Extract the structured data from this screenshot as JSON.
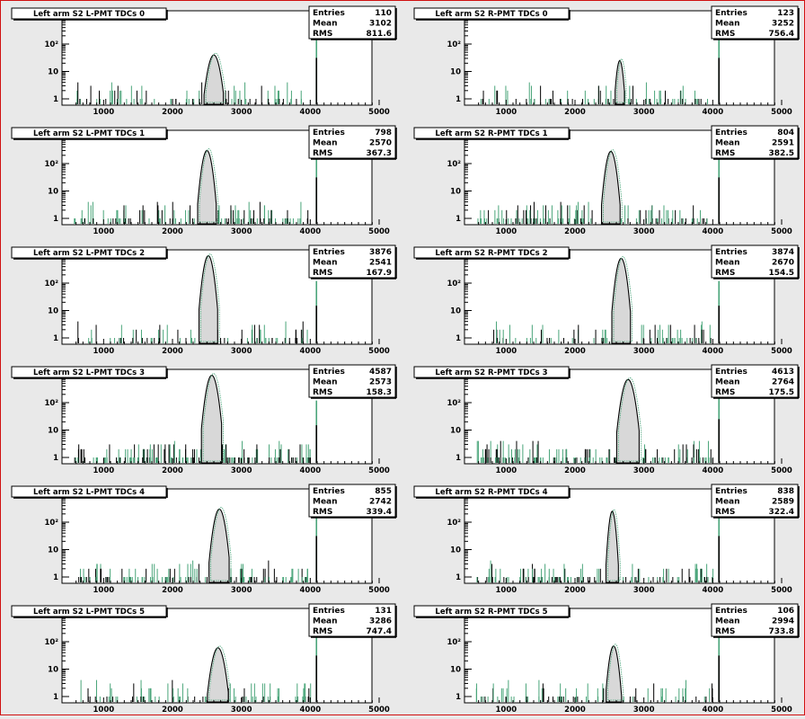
{
  "colors": {
    "background": "#e9e9e9",
    "plot_background": "#ffffff",
    "border": "#d01010",
    "green_series": "#4aa57a",
    "black_series": "#000000",
    "peak_fill": "#d8d8d8"
  },
  "chart_data": [
    {
      "type": "bar",
      "title": "Left arm S2 L-PMT TDCs 0",
      "stats": {
        "entries_label": "Entries",
        "entries": "110",
        "mean_label": "Mean",
        "mean": "3102",
        "rms_label": "RMS",
        "rms": "811.6"
      },
      "xticks": [
        "1000",
        "2000",
        "3000",
        "4000",
        "5000"
      ],
      "yticks": [
        "1",
        "10",
        "10²"
      ],
      "xlim": [
        500,
        5000
      ],
      "ylog": true,
      "peak": {
        "x": 2600,
        "height": 40,
        "width": 55
      },
      "spike_4090": 250,
      "noise": "sparse",
      "series": [
        {
          "color": "green"
        },
        {
          "color": "black"
        }
      ]
    },
    {
      "type": "bar",
      "title": "Left arm S2 R-PMT TDCs 0",
      "stats": {
        "entries_label": "Entries",
        "entries": "123",
        "mean_label": "Mean",
        "mean": "3252",
        "rms_label": "RMS",
        "rms": "756.4"
      },
      "xticks": [
        "1000",
        "2000",
        "3000",
        "4000",
        "5000"
      ],
      "yticks": [
        "1",
        "10",
        "10²"
      ],
      "xlim": [
        500,
        5000
      ],
      "ylog": true,
      "peak": {
        "x": 2650,
        "height": 25,
        "width": 30
      },
      "spike_4090": 250,
      "noise": "sparse",
      "series": [
        {
          "color": "green"
        },
        {
          "color": "black"
        }
      ]
    },
    {
      "type": "bar",
      "title": "Left arm S2 L-PMT TDCs 1",
      "stats": {
        "entries_label": "Entries",
        "entries": "798",
        "mean_label": "Mean",
        "mean": "2570",
        "rms_label": "RMS",
        "rms": "367.3"
      },
      "xticks": [
        "1000",
        "2000",
        "3000",
        "4000",
        "5000"
      ],
      "yticks": [
        "1",
        "10",
        "10²"
      ],
      "xlim": [
        500,
        5000
      ],
      "ylog": true,
      "peak": {
        "x": 2500,
        "height": 300,
        "width": 45
      },
      "spike_4090": 250,
      "noise": "medium",
      "series": [
        {
          "color": "green"
        },
        {
          "color": "black"
        }
      ]
    },
    {
      "type": "bar",
      "title": "Left arm S2 R-PMT TDCs 1",
      "stats": {
        "entries_label": "Entries",
        "entries": "804",
        "mean_label": "Mean",
        "mean": "2591",
        "rms_label": "RMS",
        "rms": "382.5"
      },
      "xticks": [
        "1000",
        "2000",
        "3000",
        "4000",
        "5000"
      ],
      "yticks": [
        "1",
        "10",
        "10²"
      ],
      "xlim": [
        500,
        5000
      ],
      "ylog": true,
      "peak": {
        "x": 2520,
        "height": 280,
        "width": 45
      },
      "spike_4090": 250,
      "noise": "medium",
      "series": [
        {
          "color": "green"
        },
        {
          "color": "black"
        }
      ]
    },
    {
      "type": "bar",
      "title": "Left arm S2 L-PMT TDCs 2",
      "stats": {
        "entries_label": "Entries",
        "entries": "3876",
        "mean_label": "Mean",
        "mean": "2541",
        "rms_label": "RMS",
        "rms": "167.9"
      },
      "xticks": [
        "1000",
        "2000",
        "3000",
        "4000",
        "5000"
      ],
      "yticks": [
        "1",
        "10",
        "10²"
      ],
      "xlim": [
        500,
        5000
      ],
      "ylog": true,
      "peak": {
        "x": 2520,
        "height": 1000,
        "width": 45
      },
      "spike_4090": 120,
      "noise": "sparse",
      "series": [
        {
          "color": "green"
        },
        {
          "color": "black"
        }
      ]
    },
    {
      "type": "bar",
      "title": "Left arm S2 R-PMT TDCs 2",
      "stats": {
        "entries_label": "Entries",
        "entries": "3874",
        "mean_label": "Mean",
        "mean": "2670",
        "rms_label": "RMS",
        "rms": "154.5"
      },
      "xticks": [
        "1000",
        "2000",
        "3000",
        "4000",
        "5000"
      ],
      "yticks": [
        "1",
        "10",
        "10²"
      ],
      "xlim": [
        500,
        5000
      ],
      "ylog": true,
      "peak": {
        "x": 2670,
        "height": 800,
        "width": 45
      },
      "spike_4090": 120,
      "noise": "sparse",
      "series": [
        {
          "color": "green"
        },
        {
          "color": "black"
        }
      ]
    },
    {
      "type": "bar",
      "title": "Left arm S2 L-PMT TDCs 3",
      "stats": {
        "entries_label": "Entries",
        "entries": "4587",
        "mean_label": "Mean",
        "mean": "2573",
        "rms_label": "RMS",
        "rms": "158.3"
      },
      "xticks": [
        "1000",
        "2000",
        "3000",
        "4000",
        "5000"
      ],
      "yticks": [
        "1",
        "10",
        "10²"
      ],
      "xlim": [
        500,
        5000
      ],
      "ylog": true,
      "peak": {
        "x": 2570,
        "height": 1000,
        "width": 50
      },
      "spike_4090": 120,
      "noise": "dense",
      "series": [
        {
          "color": "green"
        },
        {
          "color": "black"
        }
      ]
    },
    {
      "type": "bar",
      "title": "Left arm S2 R-PMT TDCs 3",
      "stats": {
        "entries_label": "Entries",
        "entries": "4613",
        "mean_label": "Mean",
        "mean": "2764",
        "rms_label": "RMS",
        "rms": "175.5"
      },
      "xticks": [
        "1000",
        "2000",
        "3000",
        "4000",
        "5000"
      ],
      "yticks": [
        "1",
        "10",
        "10²"
      ],
      "xlim": [
        500,
        5000
      ],
      "ylog": true,
      "peak": {
        "x": 2770,
        "height": 700,
        "width": 55
      },
      "spike_4090": 200,
      "noise": "dense",
      "series": [
        {
          "color": "green"
        },
        {
          "color": "black"
        }
      ]
    },
    {
      "type": "bar",
      "title": "Left arm S2 L-PMT TDCs 4",
      "stats": {
        "entries_label": "Entries",
        "entries": "855",
        "mean_label": "Mean",
        "mean": "2742",
        "rms_label": "RMS",
        "rms": "339.4"
      },
      "xticks": [
        "1000",
        "2000",
        "3000",
        "4000",
        "5000"
      ],
      "yticks": [
        "1",
        "10",
        "10²"
      ],
      "xlim": [
        500,
        5000
      ],
      "ylog": true,
      "peak": {
        "x": 2680,
        "height": 300,
        "width": 50
      },
      "spike_4090": 250,
      "noise": "medium",
      "series": [
        {
          "color": "green"
        },
        {
          "color": "black"
        }
      ]
    },
    {
      "type": "bar",
      "title": "Left arm S2 R-PMT TDCs 4",
      "stats": {
        "entries_label": "Entries",
        "entries": "838",
        "mean_label": "Mean",
        "mean": "2589",
        "rms_label": "RMS",
        "rms": "322.4"
      },
      "xticks": [
        "1000",
        "2000",
        "3000",
        "4000",
        "5000"
      ],
      "yticks": [
        "1",
        "10",
        "10²"
      ],
      "xlim": [
        500,
        5000
      ],
      "ylog": true,
      "peak": {
        "x": 2540,
        "height": 250,
        "width": 30
      },
      "spike_4090": 250,
      "noise": "medium",
      "series": [
        {
          "color": "green"
        },
        {
          "color": "black"
        }
      ]
    },
    {
      "type": "bar",
      "title": "Left arm S2 L-PMT TDCs 5",
      "stats": {
        "entries_label": "Entries",
        "entries": "131",
        "mean_label": "Mean",
        "mean": "3286",
        "rms_label": "RMS",
        "rms": "747.4"
      },
      "xticks": [
        "1000",
        "2000",
        "3000",
        "4000",
        "5000"
      ],
      "yticks": [
        "1",
        "10",
        "10²"
      ],
      "xlim": [
        500,
        5000
      ],
      "ylog": true,
      "peak": {
        "x": 2660,
        "height": 60,
        "width": 55
      },
      "spike_4090": 250,
      "noise": "sparse",
      "series": [
        {
          "color": "green"
        },
        {
          "color": "black"
        }
      ]
    },
    {
      "type": "bar",
      "title": "Left arm S2 R-PMT TDCs 5",
      "stats": {
        "entries_label": "Entries",
        "entries": "106",
        "mean_label": "Mean",
        "mean": "2994",
        "rms_label": "RMS",
        "rms": "733.8"
      },
      "xticks": [
        "1000",
        "2000",
        "3000",
        "4000",
        "5000"
      ],
      "yticks": [
        "1",
        "10",
        "10²"
      ],
      "xlim": [
        500,
        5000
      ],
      "ylog": true,
      "peak": {
        "x": 2560,
        "height": 70,
        "width": 40
      },
      "spike_4090": 250,
      "noise": "sparse",
      "series": [
        {
          "color": "green"
        },
        {
          "color": "black"
        }
      ]
    }
  ]
}
